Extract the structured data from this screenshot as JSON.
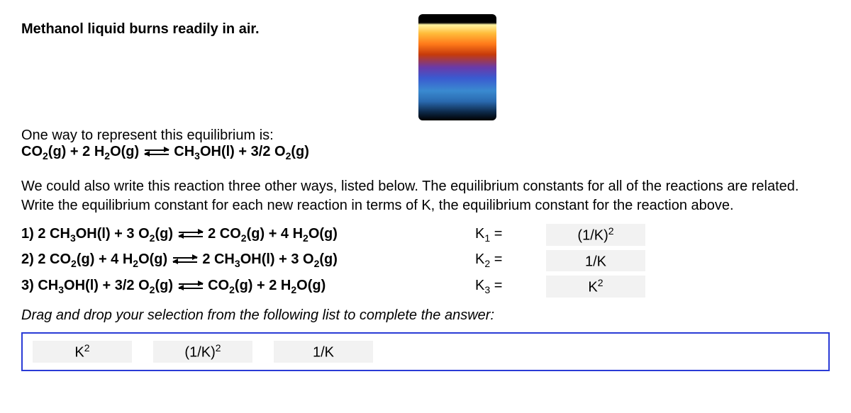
{
  "title": "Methanol liquid burns readily in air.",
  "intro": "One way to represent this equilibrium is:",
  "main_equation": {
    "lhs_a": "CO",
    "lhs_a_sub": "2",
    "lhs_a_state": "(g)",
    "plus1": " + 2 H",
    "h2o_sub": "2",
    "h2o_rest": "O(g)",
    "rhs_a": "CH",
    "rhs_a_sub": "3",
    "rhs_a_rest": "OH(l) + 3/2 O",
    "o2_sub": "2",
    "o2_state": "(g)"
  },
  "body_text": "We could also write this reaction three other ways, listed below. The equilibrium constants for all of the reactions are related. Write the equilibrium constant for each new reaction in terms of K, the equilibrium constant for the reaction above.",
  "reactions": [
    {
      "label": "1)",
      "eq_parts": [
        "2 CH",
        "3",
        "OH(l) + 3 O",
        "2",
        "(g)",
        "2 CO",
        "2",
        "(g) + 4 H",
        "2",
        "O(g)"
      ],
      "klabel": "K",
      "ksub": "1",
      "keq": " =",
      "answer_base": "(1/K)",
      "answer_sup": "2"
    },
    {
      "label": "2)",
      "eq_parts": [
        "2 CO",
        "2",
        "(g) + 4 H",
        "2",
        "O(g)",
        "2 CH",
        "3",
        "OH(l) + 3 O",
        "2",
        "(g)"
      ],
      "klabel": "K",
      "ksub": "2",
      "keq": " =",
      "answer_base": "1/K",
      "answer_sup": ""
    },
    {
      "label": "3)",
      "eq_parts": [
        "CH",
        "3",
        "OH(l) + 3/2 O",
        "2",
        "(g)",
        "CO",
        "2",
        "(g) + 2 H",
        "2",
        "O(g)"
      ],
      "klabel": "K",
      "ksub": "3",
      "keq": " =",
      "answer_base": "K",
      "answer_sup": "2"
    }
  ],
  "instruction": "Drag and drop your selection from the following list to complete the answer:",
  "choices": [
    {
      "base": "K",
      "sup": "2"
    },
    {
      "base": "(1/K)",
      "sup": "2"
    },
    {
      "base": "1/K",
      "sup": ""
    }
  ]
}
